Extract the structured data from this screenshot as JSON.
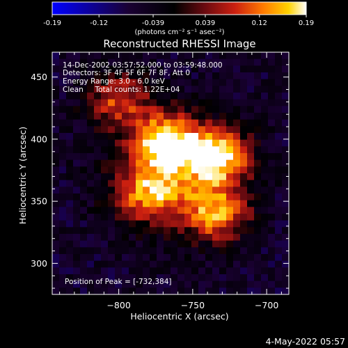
{
  "colorbar": {
    "range": [
      -0.19,
      0.19
    ],
    "ticks": [
      "-0.19",
      "-0.12",
      "-0.039",
      "0.039",
      "0.12",
      "0.19"
    ],
    "unit_label": "(photons cm⁻² s⁻¹ asec⁻²)",
    "colors": [
      "#0000ff",
      "#1a0033",
      "#000000",
      "#6a0a10",
      "#cc2010",
      "#ff7a00",
      "#ffd200",
      "#ffffff"
    ]
  },
  "annotations": {
    "line1": "14-Dec-2002 03:57:52.000 to 03:59:48.000",
    "line2": "Detectors: 3F 4F 5F 6F 7F 8F, Att 0",
    "line3": "Energy Range: 3.0 - 6.0 keV",
    "line4": "Clean     Total counts: 1.22E+04",
    "peak": "Position of Peak = [-732,384]"
  },
  "footer_date": "4-May-2022 05:57",
  "chart_data": {
    "type": "heatmap",
    "title": "Reconstructed RHESSI Image",
    "xlabel": "Heliocentric X (arcsec)",
    "ylabel": "Heliocentric Y (arcsec)",
    "xlim": [
      -845,
      -685
    ],
    "ylim": [
      275,
      470
    ],
    "xticks": [
      -800,
      -750,
      -700
    ],
    "yticks": [
      300,
      350,
      400,
      450
    ],
    "colorscale_range": [
      -0.19,
      0.19
    ],
    "peak_position": [
      -732,
      384
    ],
    "peak_value": 0.19,
    "bright_regions": [
      {
        "center": [
          -768,
          398
        ],
        "value": 0.17
      },
      {
        "center": [
          -733,
          386
        ],
        "value": 0.18
      },
      {
        "center": [
          -733,
          340
        ],
        "value": 0.14
      },
      {
        "center": [
          -800,
          432
        ],
        "value": 0.1
      },
      {
        "center": [
          -780,
          355
        ],
        "value": 0.09
      }
    ]
  }
}
